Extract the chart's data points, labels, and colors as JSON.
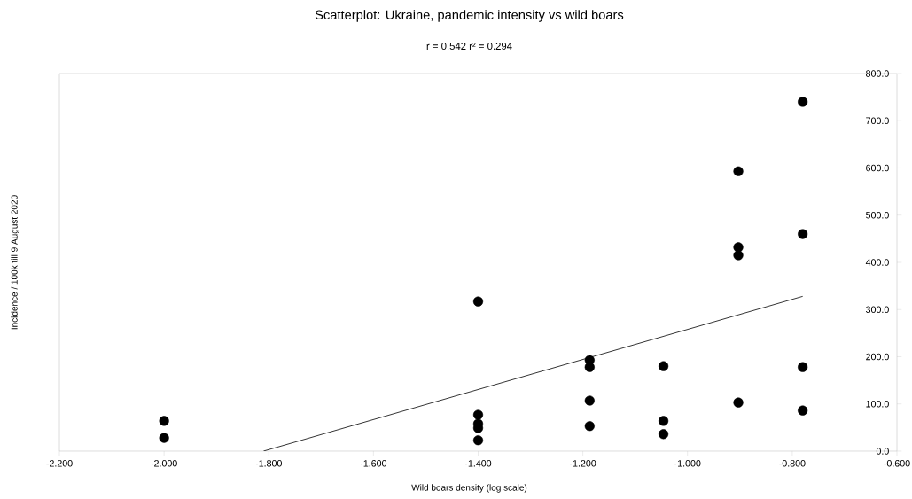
{
  "chart_data": {
    "type": "scatter",
    "title": "Scatterplot: Ukraine, pandemic intensity vs wild boars",
    "subtitle": "r = 0.542   r² = 0.294",
    "xlabel": "Wild boars density (log scale)",
    "ylabel": "Incidence / 100k till 9 August 2020",
    "series": [
      {
        "color": "#000000",
        "marker": "circle",
        "x": [
          -2.0,
          -2.0,
          -1.4,
          -1.4,
          -1.4,
          -1.4,
          -1.4,
          -1.187,
          -1.187,
          -1.187,
          -1.187,
          -1.046,
          -1.046,
          -1.046,
          -0.903,
          -0.903,
          -0.903,
          -0.903,
          -0.78,
          -0.78,
          -0.78,
          -0.78
        ],
        "values": [
          64,
          28,
          317,
          77,
          58,
          49,
          23,
          193,
          178,
          107,
          53,
          180,
          64,
          36,
          593,
          432,
          415,
          103,
          740,
          460,
          178,
          86
        ]
      },
      {
        "type": "line",
        "color": "#000000",
        "marker": "none",
        "x": [
          -1.81,
          -0.78
        ],
        "values": [
          0,
          328
        ]
      }
    ],
    "xlim": [
      -2.2,
      -0.6
    ],
    "ylim": [
      0,
      800
    ],
    "xticks": [
      {
        "value": -2.2,
        "label": "-2.200"
      },
      {
        "value": -2.0,
        "label": "-2.000"
      },
      {
        "value": -1.8,
        "label": "-1.800"
      },
      {
        "value": -1.6,
        "label": "-1.600"
      },
      {
        "value": -1.4,
        "label": "-1.400"
      },
      {
        "value": -1.2,
        "label": "-1.200"
      },
      {
        "value": -1.0,
        "label": "-1.000"
      },
      {
        "value": -0.8,
        "label": "-0.800"
      },
      {
        "value": -0.6,
        "label": "-0.600"
      }
    ],
    "yticks": [
      {
        "value": 0,
        "label": "0.0"
      },
      {
        "value": 100,
        "label": "100.0"
      },
      {
        "value": 200,
        "label": "200.0"
      },
      {
        "value": 300,
        "label": "300.0"
      },
      {
        "value": 400,
        "label": "400.0"
      },
      {
        "value": 500,
        "label": "500.0"
      },
      {
        "value": 600,
        "label": "600.0"
      },
      {
        "value": 700,
        "label": "700.0"
      },
      {
        "value": 800,
        "label": "800.0"
      }
    ],
    "grid": false
  }
}
